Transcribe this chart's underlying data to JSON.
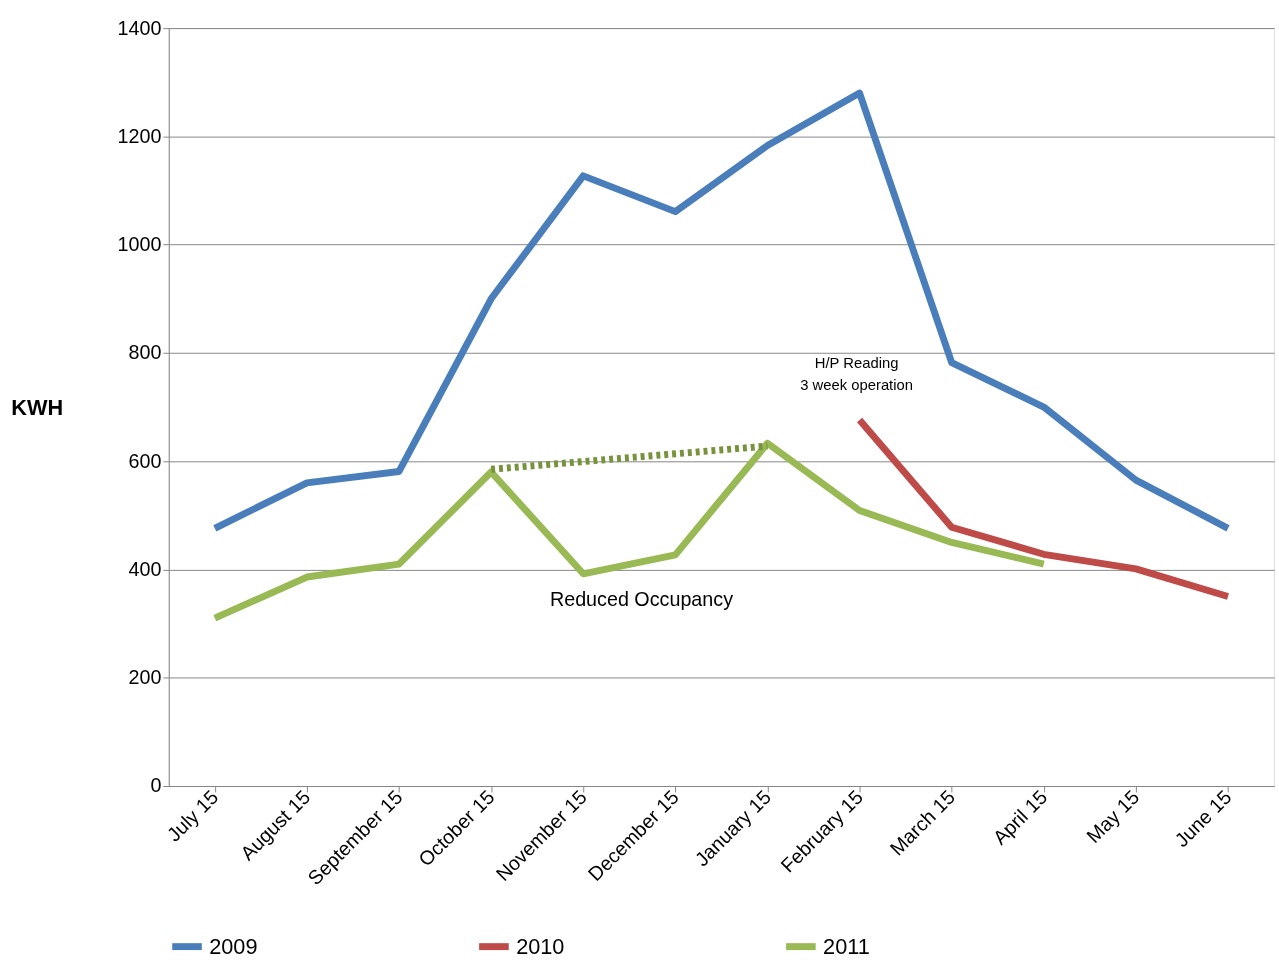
{
  "chart_data": {
    "type": "line",
    "ylabel": "KWH",
    "categories": [
      "July 15",
      "August 15",
      "September 15",
      "October 15",
      "November 15",
      "December 15",
      "January 15",
      "February 15",
      "March 15",
      "April 15",
      "May 15",
      "June 15"
    ],
    "series": [
      {
        "name": "2009",
        "color": "#4a7ebb",
        "values": [
          476,
          560,
          581,
          900,
          1127,
          1061,
          1183,
          1280,
          782,
          700,
          565,
          476
        ]
      },
      {
        "name": "2010",
        "color": "#be4b48",
        "values": [
          null,
          null,
          null,
          null,
          null,
          null,
          null,
          676,
          478,
          428,
          401,
          350
        ]
      },
      {
        "name": "2011",
        "color": "#98b954",
        "values": [
          310,
          386,
          410,
          580,
          392,
          427,
          633,
          509,
          450,
          410,
          null,
          null
        ]
      },
      {
        "color": "#77933c",
        "line_style": "dotted",
        "values": [
          null,
          null,
          null,
          585,
          null,
          null,
          628,
          null,
          null,
          null,
          null,
          null
        ]
      }
    ],
    "ylim": [
      0,
      1400
    ],
    "yticks": [
      0,
      200,
      400,
      600,
      800,
      1000,
      1200,
      1400
    ],
    "grid": "y",
    "legend": "bottom",
    "marker": "none",
    "line_style": "solid",
    "annotations": [
      "H/P Reading\n3 week operation",
      "Reduced Occupancy"
    ]
  }
}
